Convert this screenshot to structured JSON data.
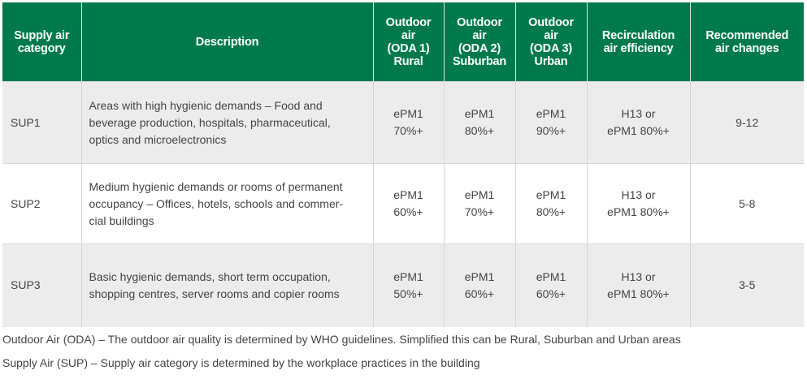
{
  "colors": {
    "header_bg": "#007a4d",
    "row_alt_bg": "#ececec"
  },
  "headers": [
    "Supply air category",
    "Description",
    "Outdoor air (ODA 1) Rural",
    "Outdoor air (ODA 2) Suburban",
    "Outdoor air (ODA 3) Urban",
    "Recirculation air efficiency",
    "Recommended air changes"
  ],
  "header_lines": [
    [
      "Supply air",
      "category"
    ],
    [
      "Description"
    ],
    [
      "Outdoor",
      "air",
      "(ODA 1)",
      "Rural"
    ],
    [
      "Outdoor",
      "air",
      "(ODA 2)",
      "Suburban"
    ],
    [
      "Outdoor",
      "air",
      "(ODA 3)",
      "Urban"
    ],
    [
      "Recirculation",
      "air efficiency"
    ],
    [
      "Recommended",
      "air changes"
    ]
  ],
  "rows": [
    {
      "category": "SUP1",
      "description": [
        "Areas with high hygienic demands – Food and",
        "beverage production, hospitals, pharmaceutical,",
        "optics and microelectronics"
      ],
      "oda1": [
        "ePM1",
        "70%+"
      ],
      "oda2": [
        "ePM1",
        "80%+"
      ],
      "oda3": [
        "ePM1",
        "90%+"
      ],
      "recirc": [
        "H13 or",
        "ePM1 80%+"
      ],
      "air_changes": "9-12"
    },
    {
      "category": "SUP2",
      "description": [
        "Medium hygienic demands or rooms of permanent",
        "occupancy – Offices, hotels, schools and commer-",
        "cial buildings"
      ],
      "oda1": [
        "ePM1",
        "60%+"
      ],
      "oda2": [
        "ePM1",
        "70%+"
      ],
      "oda3": [
        "ePM1",
        "80%+"
      ],
      "recirc": [
        "H13 or",
        "ePM1 80%+"
      ],
      "air_changes": "5-8"
    },
    {
      "category": "SUP3",
      "description": [
        "Basic hygienic demands, short term occupation,",
        "shopping centres, server rooms and copier rooms"
      ],
      "oda1": [
        "ePM1",
        "50%+"
      ],
      "oda2": [
        "ePM1",
        "60%+"
      ],
      "oda3": [
        "ePM1",
        "60%+"
      ],
      "recirc": [
        "H13 or",
        "ePM1 80%+"
      ],
      "air_changes": "3-5"
    }
  ],
  "notes": [
    "Outdoor Air (ODA) – The outdoor air quality is determined by WHO guidelines. Simplified this can be Rural, Suburban and Urban areas",
    "Supply Air (SUP) – Supply air category is determined by the workplace practices in the building"
  ]
}
